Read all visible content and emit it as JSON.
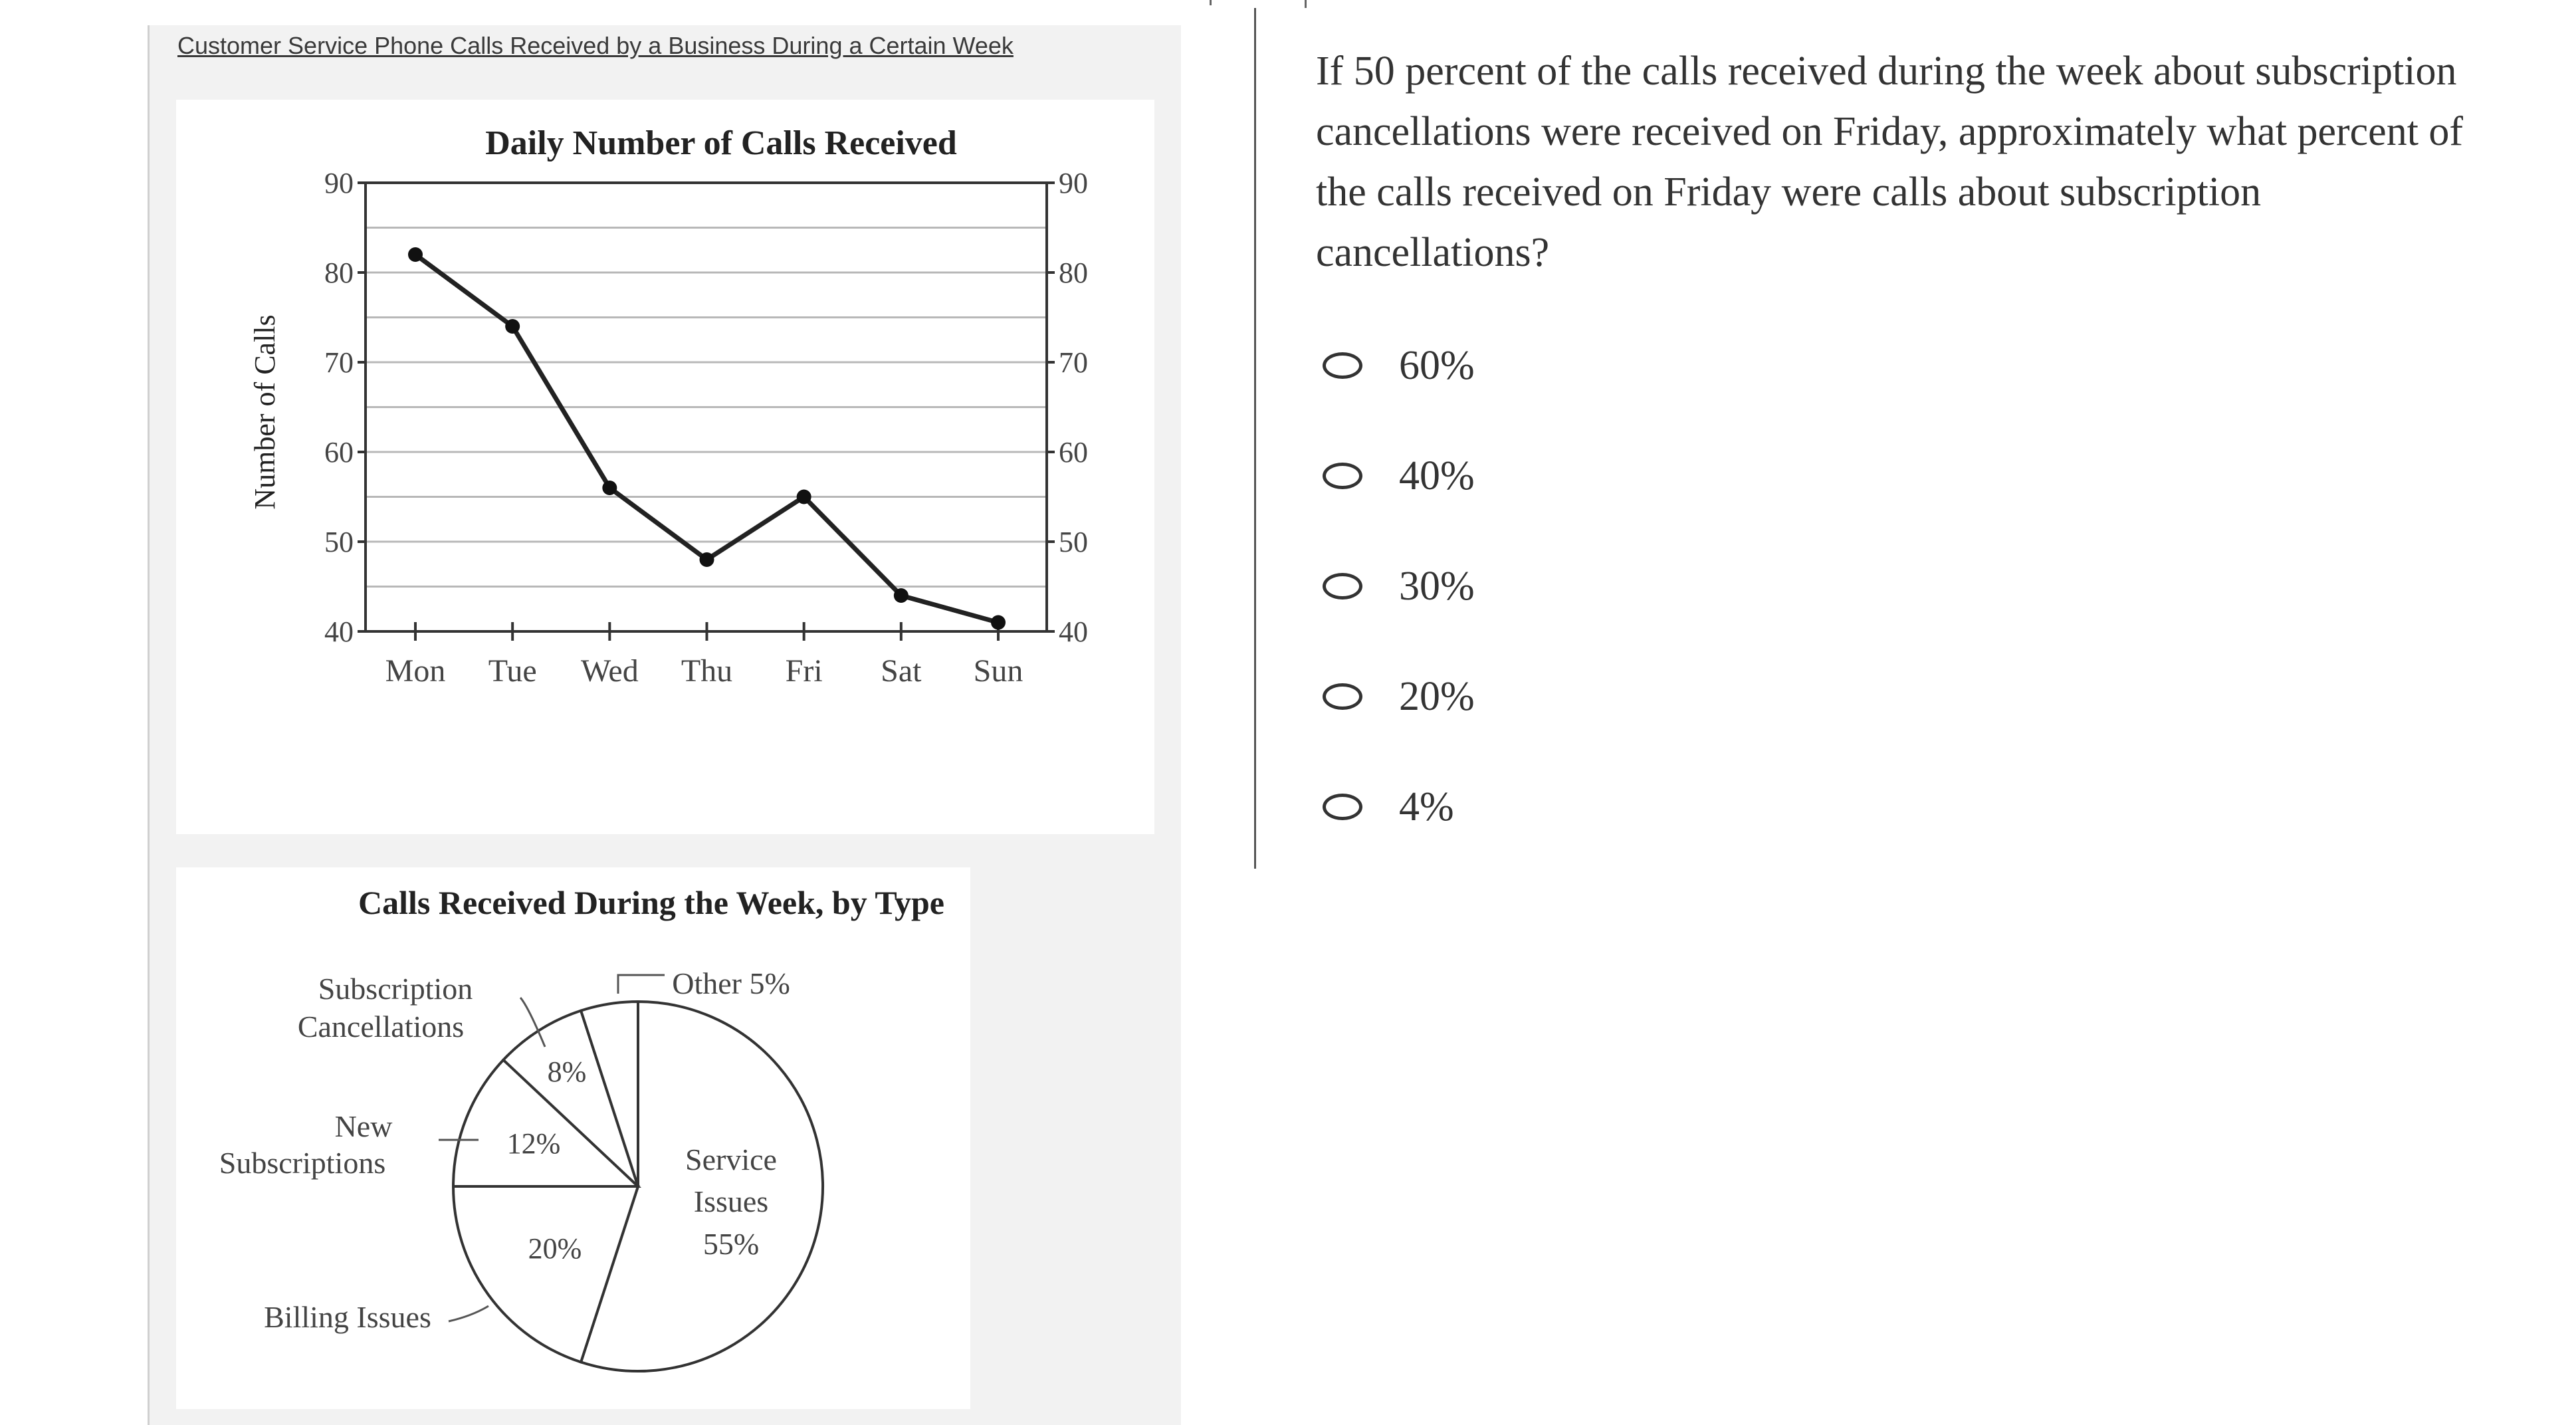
{
  "stimulus": {
    "title": "Customer Service Phone Calls Received by a Business During a Certain Week"
  },
  "line_chart": {
    "type": "line",
    "title": "Daily Number of Calls Received",
    "ylabel": "Number of Calls",
    "categories": [
      "Mon",
      "Tue",
      "Wed",
      "Thu",
      "Fri",
      "Sat",
      "Sun"
    ],
    "values": [
      82,
      74,
      56,
      48,
      55,
      44,
      41
    ],
    "ylim": [
      40,
      90
    ],
    "yticks": [
      "40",
      "50",
      "60",
      "70",
      "80",
      "90"
    ],
    "grid": true
  },
  "pie_chart": {
    "type": "pie",
    "title": "Calls Received During the Week, by Type",
    "slices": [
      {
        "name": "Service Issues",
        "label_lines": [
          "Service",
          "Issues",
          "55%"
        ],
        "value": 55
      },
      {
        "name": "Billing Issues",
        "outer_label": "Billing Issues",
        "value_label": "20%",
        "value": 20
      },
      {
        "name": "New Subscriptions",
        "outer_label_lines": [
          "New",
          "Subscriptions"
        ],
        "value_label": "12%",
        "value": 12
      },
      {
        "name": "Subscription Cancellations",
        "outer_label_lines": [
          "Subscription",
          "Cancellations"
        ],
        "value_label": "8%",
        "value": 8
      },
      {
        "name": "Other",
        "outer_label": "Other 5%",
        "value": 5
      }
    ]
  },
  "question": {
    "text": "If 50 percent of the calls received during the week about subscription cancellations were received on Friday, approximately what percent of the calls received on Friday were calls about subscription cancellations?",
    "options": [
      "60%",
      "40%",
      "30%",
      "20%",
      "4%"
    ]
  }
}
